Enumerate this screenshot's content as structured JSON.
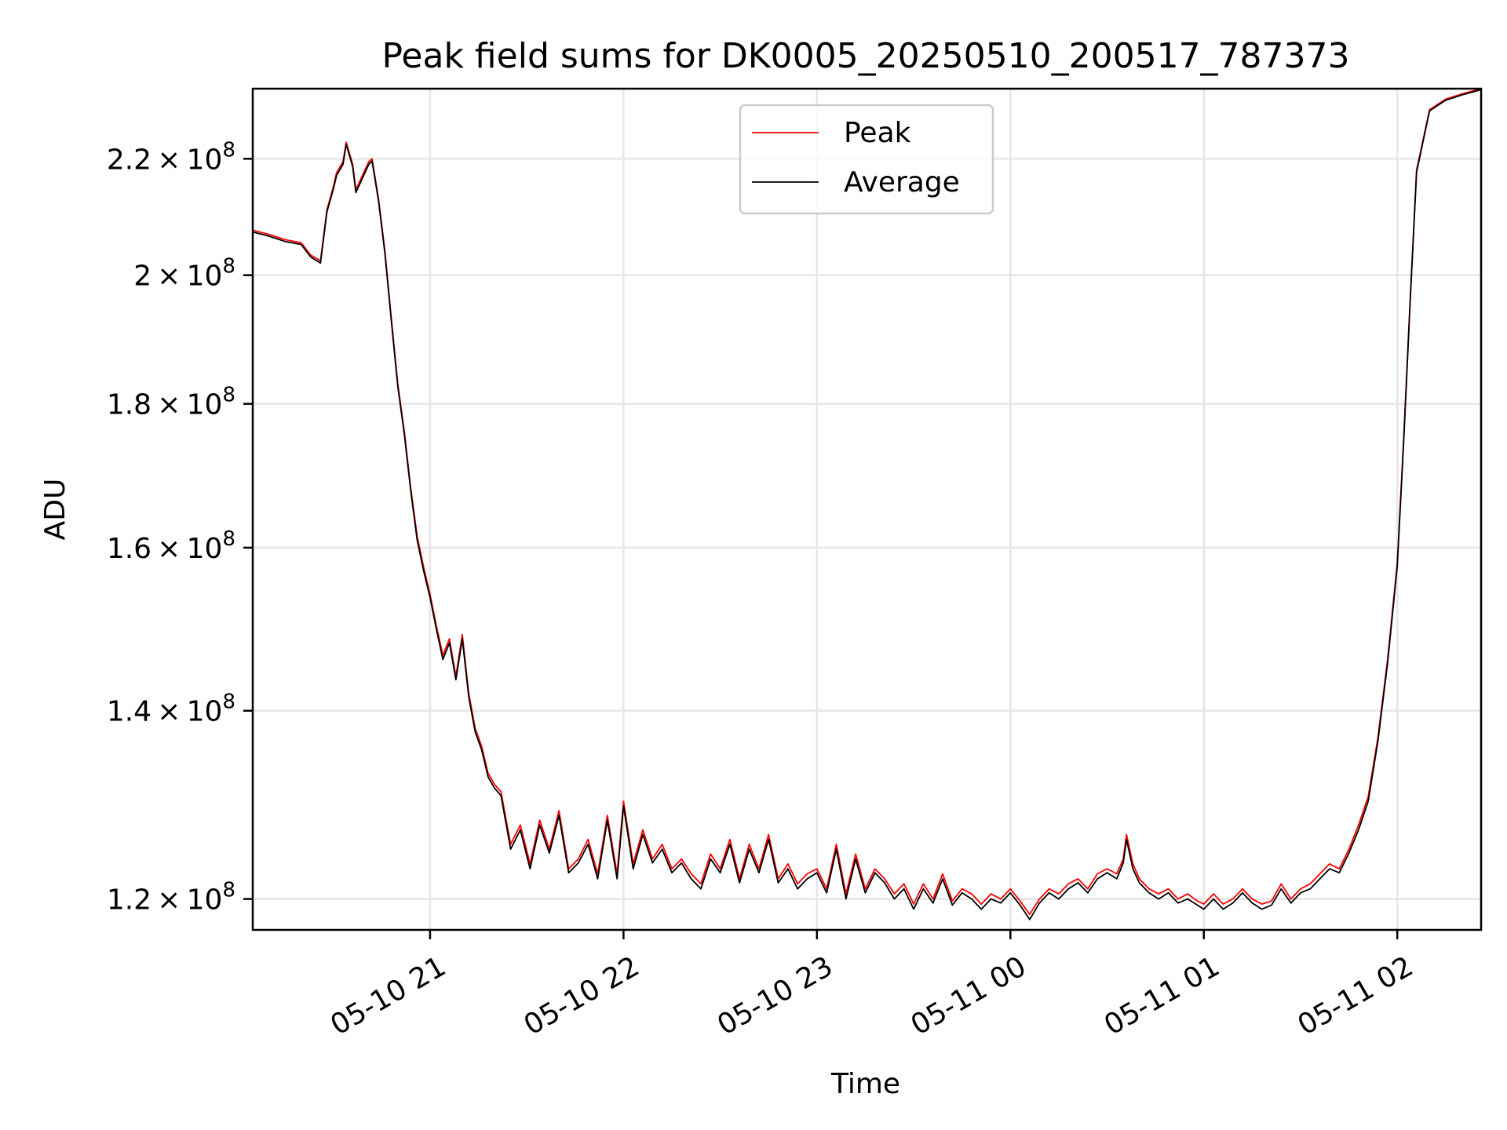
{
  "chart_data": {
    "type": "line",
    "title": "Peak field sums for DK0005_20250510_200517_787373",
    "xlabel": "Time",
    "ylabel": "ADU",
    "y_scale": "log",
    "grid": true,
    "legend_position": "top-center",
    "xlim": [
      "2025-05-10 20:05",
      "2025-05-11 02:26"
    ],
    "ylim": [
      117000000,
      233000000
    ],
    "x_ticks": [
      {
        "value": "2025-05-10 21:00",
        "label": "05-10 21"
      },
      {
        "value": "2025-05-10 22:00",
        "label": "05-10 22"
      },
      {
        "value": "2025-05-10 23:00",
        "label": "05-10 23"
      },
      {
        "value": "2025-05-11 00:00",
        "label": "05-11 00"
      },
      {
        "value": "2025-05-11 01:00",
        "label": "05-11 01"
      },
      {
        "value": "2025-05-11 02:00",
        "label": "05-11 02"
      }
    ],
    "y_ticks": [
      {
        "value": 120000000,
        "mantissa": "1.2",
        "base": "10",
        "exp": "8"
      },
      {
        "value": 140000000,
        "mantissa": "1.4",
        "base": "10",
        "exp": "8"
      },
      {
        "value": 160000000,
        "mantissa": "1.6",
        "base": "10",
        "exp": "8"
      },
      {
        "value": 180000000,
        "mantissa": "1.8",
        "base": "10",
        "exp": "8"
      },
      {
        "value": 200000000,
        "mantissa": "2",
        "base": "10",
        "exp": "8"
      },
      {
        "value": 220000000,
        "mantissa": "2.2",
        "base": "10",
        "exp": "8"
      }
    ],
    "series": [
      {
        "name": "Peak",
        "color": "#ff0000",
        "x": [
          "2025-05-10 20:05",
          "2025-05-10 20:10",
          "2025-05-10 20:15",
          "2025-05-10 20:20",
          "2025-05-10 20:23",
          "2025-05-10 20:26",
          "2025-05-10 20:28",
          "2025-05-10 20:30",
          "2025-05-10 20:31",
          "2025-05-10 20:33",
          "2025-05-10 20:34",
          "2025-05-10 20:36",
          "2025-05-10 20:37",
          "2025-05-10 20:39",
          "2025-05-10 20:41",
          "2025-05-10 20:42",
          "2025-05-10 20:44",
          "2025-05-10 20:46",
          "2025-05-10 20:48",
          "2025-05-10 20:50",
          "2025-05-10 20:52",
          "2025-05-10 20:54",
          "2025-05-10 20:56",
          "2025-05-10 20:58",
          "2025-05-10 21:00",
          "2025-05-10 21:02",
          "2025-05-10 21:04",
          "2025-05-10 21:06",
          "2025-05-10 21:08",
          "2025-05-10 21:10",
          "2025-05-10 21:12",
          "2025-05-10 21:14",
          "2025-05-10 21:16",
          "2025-05-10 21:18",
          "2025-05-10 21:20",
          "2025-05-10 21:22",
          "2025-05-10 21:25",
          "2025-05-10 21:28",
          "2025-05-10 21:31",
          "2025-05-10 21:34",
          "2025-05-10 21:37",
          "2025-05-10 21:40",
          "2025-05-10 21:43",
          "2025-05-10 21:46",
          "2025-05-10 21:49",
          "2025-05-10 21:52",
          "2025-05-10 21:55",
          "2025-05-10 21:58",
          "2025-05-10 22:00",
          "2025-05-10 22:03",
          "2025-05-10 22:06",
          "2025-05-10 22:09",
          "2025-05-10 22:12",
          "2025-05-10 22:15",
          "2025-05-10 22:18",
          "2025-05-10 22:21",
          "2025-05-10 22:24",
          "2025-05-10 22:27",
          "2025-05-10 22:30",
          "2025-05-10 22:33",
          "2025-05-10 22:36",
          "2025-05-10 22:39",
          "2025-05-10 22:42",
          "2025-05-10 22:45",
          "2025-05-10 22:48",
          "2025-05-10 22:51",
          "2025-05-10 22:54",
          "2025-05-10 22:57",
          "2025-05-10 23:00",
          "2025-05-10 23:03",
          "2025-05-10 23:06",
          "2025-05-10 23:09",
          "2025-05-10 23:12",
          "2025-05-10 23:15",
          "2025-05-10 23:18",
          "2025-05-10 23:21",
          "2025-05-10 23:24",
          "2025-05-10 23:27",
          "2025-05-10 23:30",
          "2025-05-10 23:33",
          "2025-05-10 23:36",
          "2025-05-10 23:39",
          "2025-05-10 23:42",
          "2025-05-10 23:45",
          "2025-05-10 23:48",
          "2025-05-10 23:51",
          "2025-05-10 23:54",
          "2025-05-10 23:57",
          "2025-05-11 00:00",
          "2025-05-11 00:03",
          "2025-05-11 00:06",
          "2025-05-11 00:09",
          "2025-05-11 00:12",
          "2025-05-11 00:15",
          "2025-05-11 00:18",
          "2025-05-11 00:21",
          "2025-05-11 00:24",
          "2025-05-11 00:27",
          "2025-05-11 00:30",
          "2025-05-11 00:33",
          "2025-05-11 00:35",
          "2025-05-11 00:36",
          "2025-05-11 00:38",
          "2025-05-11 00:40",
          "2025-05-11 00:43",
          "2025-05-11 00:46",
          "2025-05-11 00:49",
          "2025-05-11 00:52",
          "2025-05-11 00:55",
          "2025-05-11 00:58",
          "2025-05-11 01:00",
          "2025-05-11 01:03",
          "2025-05-11 01:06",
          "2025-05-11 01:09",
          "2025-05-11 01:12",
          "2025-05-11 01:15",
          "2025-05-11 01:18",
          "2025-05-11 01:21",
          "2025-05-11 01:24",
          "2025-05-11 01:27",
          "2025-05-11 01:30",
          "2025-05-11 01:33",
          "2025-05-11 01:36",
          "2025-05-11 01:39",
          "2025-05-11 01:42",
          "2025-05-11 01:45",
          "2025-05-11 01:48",
          "2025-05-11 01:51",
          "2025-05-11 01:54",
          "2025-05-11 01:57",
          "2025-05-11 02:00",
          "2025-05-11 02:02",
          "2025-05-11 02:04",
          "2025-05-11 02:06",
          "2025-05-11 02:10",
          "2025-05-11 02:15",
          "2025-05-11 02:20",
          "2025-05-11 02:26"
        ],
        "y": [
          207500000,
          206800000,
          205900000,
          205400000,
          203300000,
          202400000,
          211000000,
          215000000,
          217500000,
          219500000,
          223000000,
          219000000,
          214500000,
          217000000,
          219500000,
          220000000,
          213000000,
          204000000,
          193000000,
          183000000,
          176000000,
          168000000,
          161500000,
          157500000,
          154000000,
          150000000,
          146500000,
          148500000,
          144000000,
          149000000,
          142000000,
          138000000,
          136000000,
          133000000,
          131800000,
          131000000,
          125500000,
          127500000,
          123500000,
          128000000,
          125000000,
          129000000,
          123000000,
          124000000,
          126000000,
          122500000,
          128500000,
          122500000,
          130000000,
          123500000,
          127000000,
          124000000,
          125500000,
          123000000,
          124000000,
          122500000,
          121500000,
          124500000,
          123000000,
          126000000,
          122000000,
          125500000,
          123000000,
          126500000,
          122000000,
          123500000,
          121500000,
          122500000,
          123000000,
          121000000,
          125500000,
          120500000,
          124500000,
          121000000,
          123000000,
          122000000,
          120500000,
          121500000,
          119500000,
          121500000,
          120000000,
          122500000,
          119800000,
          121000000,
          120500000,
          119500000,
          120500000,
          120000000,
          121000000,
          119800000,
          118500000,
          120000000,
          121000000,
          120500000,
          121500000,
          122000000,
          121000000,
          122500000,
          123000000,
          122500000,
          124000000,
          126500000,
          123500000,
          122000000,
          121000000,
          120500000,
          121000000,
          120000000,
          120500000,
          119800000,
          119500000,
          120500000,
          119500000,
          120000000,
          121000000,
          120000000,
          119500000,
          119800000,
          121500000,
          120000000,
          121000000,
          121500000,
          122500000,
          123500000,
          123000000,
          125000000,
          127500000,
          130500000,
          137000000,
          146000000,
          158000000,
          175000000,
          196000000,
          218000000,
          229000000,
          231000000,
          232000000,
          233000000
        ]
      },
      {
        "name": "Average",
        "color": "#000000",
        "x": [
          "2025-05-10 20:05",
          "2025-05-10 20:10",
          "2025-05-10 20:15",
          "2025-05-10 20:20",
          "2025-05-10 20:23",
          "2025-05-10 20:26",
          "2025-05-10 20:28",
          "2025-05-10 20:30",
          "2025-05-10 20:31",
          "2025-05-10 20:33",
          "2025-05-10 20:34",
          "2025-05-10 20:36",
          "2025-05-10 20:37",
          "2025-05-10 20:39",
          "2025-05-10 20:41",
          "2025-05-10 20:42",
          "2025-05-10 20:44",
          "2025-05-10 20:46",
          "2025-05-10 20:48",
          "2025-05-10 20:50",
          "2025-05-10 20:52",
          "2025-05-10 20:54",
          "2025-05-10 20:56",
          "2025-05-10 20:58",
          "2025-05-10 21:00",
          "2025-05-10 21:02",
          "2025-05-10 21:04",
          "2025-05-10 21:06",
          "2025-05-10 21:08",
          "2025-05-10 21:10",
          "2025-05-10 21:12",
          "2025-05-10 21:14",
          "2025-05-10 21:16",
          "2025-05-10 21:18",
          "2025-05-10 21:20",
          "2025-05-10 21:22",
          "2025-05-10 21:25",
          "2025-05-10 21:28",
          "2025-05-10 21:31",
          "2025-05-10 21:34",
          "2025-05-10 21:37",
          "2025-05-10 21:40",
          "2025-05-10 21:43",
          "2025-05-10 21:46",
          "2025-05-10 21:49",
          "2025-05-10 21:52",
          "2025-05-10 21:55",
          "2025-05-10 21:58",
          "2025-05-10 22:00",
          "2025-05-10 22:03",
          "2025-05-10 22:06",
          "2025-05-10 22:09",
          "2025-05-10 22:12",
          "2025-05-10 22:15",
          "2025-05-10 22:18",
          "2025-05-10 22:21",
          "2025-05-10 22:24",
          "2025-05-10 22:27",
          "2025-05-10 22:30",
          "2025-05-10 22:33",
          "2025-05-10 22:36",
          "2025-05-10 22:39",
          "2025-05-10 22:42",
          "2025-05-10 22:45",
          "2025-05-10 22:48",
          "2025-05-10 22:51",
          "2025-05-10 22:54",
          "2025-05-10 22:57",
          "2025-05-10 23:00",
          "2025-05-10 23:03",
          "2025-05-10 23:06",
          "2025-05-10 23:09",
          "2025-05-10 23:12",
          "2025-05-10 23:15",
          "2025-05-10 23:18",
          "2025-05-10 23:21",
          "2025-05-10 23:24",
          "2025-05-10 23:27",
          "2025-05-10 23:30",
          "2025-05-10 23:33",
          "2025-05-10 23:36",
          "2025-05-10 23:39",
          "2025-05-10 23:42",
          "2025-05-10 23:45",
          "2025-05-10 23:48",
          "2025-05-10 23:51",
          "2025-05-10 23:54",
          "2025-05-10 23:57",
          "2025-05-11 00:00",
          "2025-05-11 00:03",
          "2025-05-11 00:06",
          "2025-05-11 00:09",
          "2025-05-11 00:12",
          "2025-05-11 00:15",
          "2025-05-11 00:18",
          "2025-05-11 00:21",
          "2025-05-11 00:24",
          "2025-05-11 00:27",
          "2025-05-11 00:30",
          "2025-05-11 00:33",
          "2025-05-11 00:35",
          "2025-05-11 00:36",
          "2025-05-11 00:38",
          "2025-05-11 00:40",
          "2025-05-11 00:43",
          "2025-05-11 00:46",
          "2025-05-11 00:49",
          "2025-05-11 00:52",
          "2025-05-11 00:55",
          "2025-05-11 00:58",
          "2025-05-11 01:00",
          "2025-05-11 01:03",
          "2025-05-11 01:06",
          "2025-05-11 01:09",
          "2025-05-11 01:12",
          "2025-05-11 01:15",
          "2025-05-11 01:18",
          "2025-05-11 01:21",
          "2025-05-11 01:24",
          "2025-05-11 01:27",
          "2025-05-11 01:30",
          "2025-05-11 01:33",
          "2025-05-11 01:36",
          "2025-05-11 01:39",
          "2025-05-11 01:42",
          "2025-05-11 01:45",
          "2025-05-11 01:48",
          "2025-05-11 01:51",
          "2025-05-11 01:54",
          "2025-05-11 01:57",
          "2025-05-11 02:00",
          "2025-05-11 02:02",
          "2025-05-11 02:04",
          "2025-05-11 02:06",
          "2025-05-11 02:10",
          "2025-05-11 02:15",
          "2025-05-11 02:20",
          "2025-05-11 02:26"
        ],
        "y": [
          207200000,
          206500000,
          205600000,
          205100000,
          203000000,
          202000000,
          210600000,
          214600000,
          217000000,
          219000000,
          222600000,
          218600000,
          214000000,
          216500000,
          219000000,
          219600000,
          212600000,
          203600000,
          192600000,
          182600000,
          175600000,
          167600000,
          161000000,
          157000000,
          153600000,
          149600000,
          146000000,
          148000000,
          143600000,
          148500000,
          141600000,
          137600000,
          135600000,
          132600000,
          131400000,
          130600000,
          125000000,
          127000000,
          123000000,
          127500000,
          124600000,
          128500000,
          122600000,
          123600000,
          125500000,
          122000000,
          128000000,
          122000000,
          129500000,
          123000000,
          126500000,
          123600000,
          125000000,
          122600000,
          123600000,
          122000000,
          121000000,
          124000000,
          122600000,
          125500000,
          121600000,
          125000000,
          122600000,
          126000000,
          121600000,
          123000000,
          121000000,
          122000000,
          122600000,
          120600000,
          125000000,
          120000000,
          124000000,
          120600000,
          122600000,
          121600000,
          120000000,
          121000000,
          119000000,
          121000000,
          119600000,
          122000000,
          119400000,
          120600000,
          120000000,
          119000000,
          120000000,
          119600000,
          120600000,
          119400000,
          118000000,
          119600000,
          120600000,
          120000000,
          121000000,
          121600000,
          120600000,
          122000000,
          122600000,
          122000000,
          123600000,
          126000000,
          123000000,
          121600000,
          120600000,
          120000000,
          120600000,
          119600000,
          120000000,
          119400000,
          119000000,
          120000000,
          119000000,
          119600000,
          120600000,
          119600000,
          119000000,
          119400000,
          121000000,
          119600000,
          120600000,
          121000000,
          122000000,
          123000000,
          122600000,
          124600000,
          127000000,
          130000000,
          136600000,
          145600000,
          157600000,
          174600000,
          195600000,
          217600000,
          228800000,
          230800000,
          231800000,
          232800000
        ]
      }
    ]
  }
}
